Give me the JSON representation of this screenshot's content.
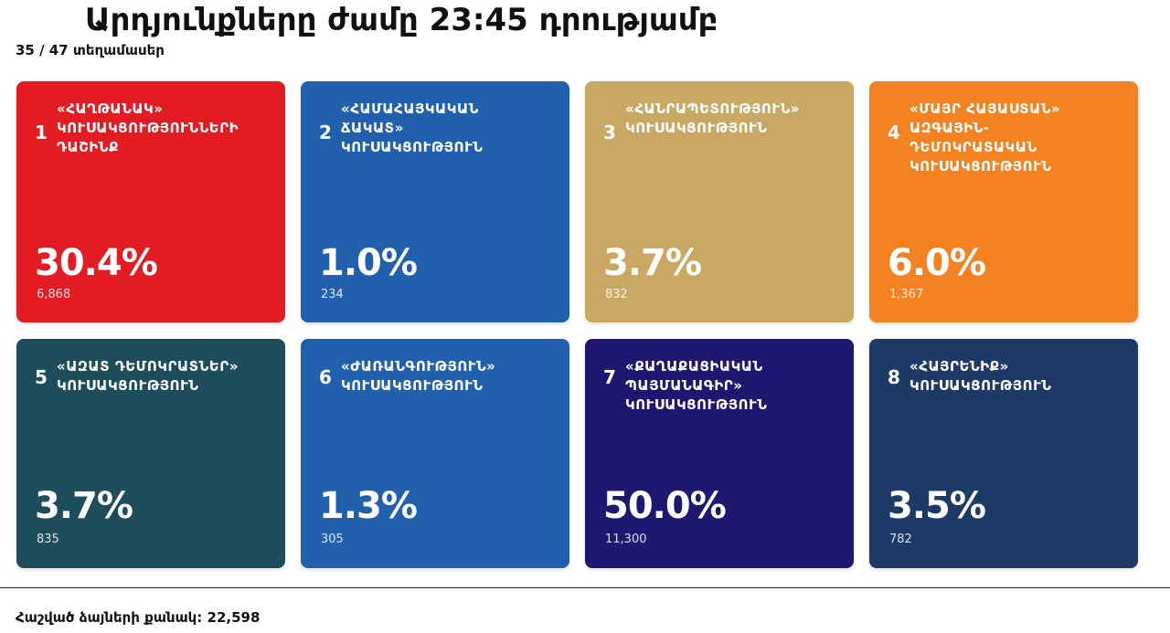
{
  "header": {
    "title": "Արդյունքները ժամը 23:45 դրությամբ",
    "subtitle": "35 / 47 տեղամասեր"
  },
  "cards": [
    {
      "number": "1",
      "name": "«ՀԱՂԹԱՆԱԿ»\nԿՈՒՍԱԿՑՈՒԹՅՈՒՆՆԵՐԻ\nԴԱՇԻՆՔ",
      "percent": "30.4%",
      "votes": "6,868",
      "color": "#e31b23"
    },
    {
      "number": "2",
      "name": "«ՀԱՄԱՀԱՅԿԱԿԱՆ\nՃԱԿԱՏ»\nԿՈՒՍԱԿՑՈՒԹՅՈՒՆ",
      "percent": "1.0%",
      "votes": "234",
      "color": "#2160ad"
    },
    {
      "number": "3",
      "name": "«ՀԱՆՐԱՊԵՏՈՒԹՅՈՒՆ»\nԿՈՒՍԱԿՑՈՒԹՅՈՒՆ",
      "percent": "3.7%",
      "votes": "832",
      "color": "#c8a862"
    },
    {
      "number": "4",
      "name": "«ՄԱՅՐ ՀԱՅԱՍՏԱՆ»\nԱԶԳԱՅԻՆ-\nԴԵՄՈԿՐԱՏԱԿԱՆ\nԿՈՒՍԱԿՑՈՒԹՅՈՒՆ",
      "percent": "6.0%",
      "votes": "1,367",
      "color": "#f58220"
    },
    {
      "number": "5",
      "name": "«ԱԶԱՏ ԴԵՄՈԿՐԱՏՆԵՐ»\nԿՈՒՍԱԿՑՈՒԹՅՈՒՆ",
      "percent": "3.7%",
      "votes": "835",
      "color": "#1e4d5b"
    },
    {
      "number": "6",
      "name": "«ԺԱՌԱՆԳՈՒԹՅՈՒՆ»\nԿՈՒՍԱԿՑՈՒԹՅՈՒՆ",
      "percent": "1.3%",
      "votes": "305",
      "color": "#2160ad"
    },
    {
      "number": "7",
      "name": "«ՔԱՂԱՔԱՑԻԱԿԱՆ\nՊԱՅՄԱՆԱԳԻՐ»\nԿՈՒՍԱԿՑՈՒԹՅՈՒՆ",
      "percent": "50.0%",
      "votes": "11,300",
      "color": "#1f1870"
    },
    {
      "number": "8",
      "name": "«ՀԱՅՐԵՆԻՔ»\nԿՈՒՍԱԿՑՈՒԹՅՈՒՆ",
      "percent": "3.5%",
      "votes": "782",
      "color": "#1e3a66"
    }
  ],
  "footer": {
    "total_votes": "Հաշված ձայների քանակ: 22,598"
  }
}
